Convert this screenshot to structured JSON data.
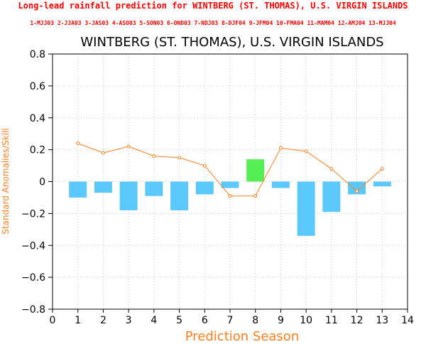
{
  "header": {
    "main_title": "Long-lead rainfall prediction for WINTBERG (ST. THOMAS), U.S. VIRGIN ISLANDS",
    "season_key": "1-MJJ03 2-JJA03 3-JAS03 4-ASO03 5-SON03 6-OND03 7-NDJ03 8-DJF04 9-JFM04 10-FMA04 11-MAM04 12-AMJ04 13-MJJ04"
  },
  "colors": {
    "negative_bar": "#5ac8fa",
    "positive_bar": "#55ee55",
    "skill_line": "#ff7f1f",
    "header_text": "#ff0000",
    "axis_label": "#ff7f1f"
  },
  "chart_data": {
    "type": "bar",
    "title": "WINTBERG (ST. THOMAS), U.S. VIRGIN ISLANDS",
    "xlabel": "Prediction Season",
    "ylabel": "Standard Anomalies/Skill",
    "xlim": [
      0,
      14
    ],
    "ylim": [
      -0.8,
      0.8
    ],
    "xticks": [
      0,
      1,
      2,
      3,
      4,
      5,
      6,
      7,
      8,
      9,
      10,
      11,
      12,
      13,
      14
    ],
    "yticks": [
      -0.8,
      -0.6,
      -0.4,
      -0.2,
      0,
      0.2,
      0.4,
      0.6,
      0.8
    ],
    "ytick_labels": [
      "−0.8",
      "−0.6",
      "−0.4",
      "−0.2",
      "0",
      "0.2",
      "0.4",
      "0.6",
      "0.8"
    ],
    "grid": true,
    "x": [
      1,
      2,
      3,
      4,
      5,
      6,
      7,
      8,
      9,
      10,
      11,
      12,
      13
    ],
    "series": [
      {
        "type": "bar",
        "values": [
          -0.1,
          -0.07,
          -0.18,
          -0.09,
          -0.18,
          -0.08,
          -0.04,
          0.14,
          -0.04,
          -0.34,
          -0.19,
          -0.08,
          -0.03
        ]
      },
      {
        "type": "line",
        "values": [
          0.24,
          0.18,
          0.22,
          0.16,
          0.15,
          0.1,
          -0.09,
          -0.09,
          0.21,
          0.19,
          0.08,
          -0.06,
          0.08
        ]
      }
    ]
  }
}
